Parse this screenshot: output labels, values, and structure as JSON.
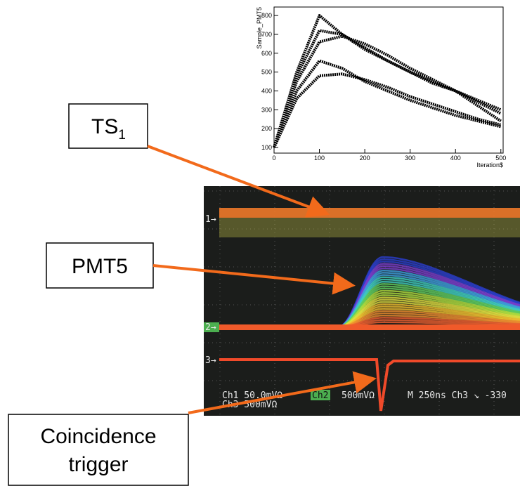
{
  "chart_data": {
    "type": "line",
    "x_label": "Iteration$",
    "y_label": "Sample_PMT5",
    "x": [
      0,
      50,
      100,
      150,
      200,
      250,
      300,
      350,
      400,
      450,
      500
    ],
    "series": [
      {
        "color": "#000000",
        "values": [
          100,
          500,
          800,
          700,
          620,
          560,
          500,
          450,
          400,
          350,
          300
        ]
      },
      {
        "color": "#000000",
        "values": [
          100,
          480,
          720,
          700,
          630,
          560,
          500,
          440,
          400,
          340,
          280
        ]
      },
      {
        "color": "#000000",
        "values": [
          100,
          450,
          660,
          690,
          650,
          590,
          520,
          460,
          400,
          320,
          240
        ]
      },
      {
        "color": "#000000",
        "values": [
          100,
          400,
          560,
          520,
          450,
          400,
          350,
          310,
          270,
          240,
          210
        ]
      },
      {
        "color": "#000000",
        "values": [
          100,
          360,
          480,
          490,
          460,
          420,
          370,
          330,
          290,
          250,
          220
        ]
      }
    ],
    "xlim": [
      0,
      505
    ],
    "ylim": [
      70,
      845
    ],
    "xticks": [
      0,
      100,
      200,
      300,
      400,
      500
    ],
    "yticks": [
      100,
      200,
      300,
      400,
      500,
      600,
      700,
      800
    ]
  },
  "callouts": {
    "ts": {
      "text": "TS",
      "subscript": "1"
    },
    "pmt": {
      "text": "PMT5"
    },
    "trigger": {
      "line1": "Coincidence",
      "line2": "trigger"
    }
  },
  "scope": {
    "ch1_marker": "1→",
    "ch2_marker": "2→",
    "ch3_marker": "3→",
    "ch1": "Ch1  50.0mVΩ",
    "ch2": "Ch2",
    "ch2_scale": "500mVΩ",
    "timebase": "M 250ns  Ch3 ↘  -330",
    "ch3": "Ch3  500mVΩ"
  }
}
